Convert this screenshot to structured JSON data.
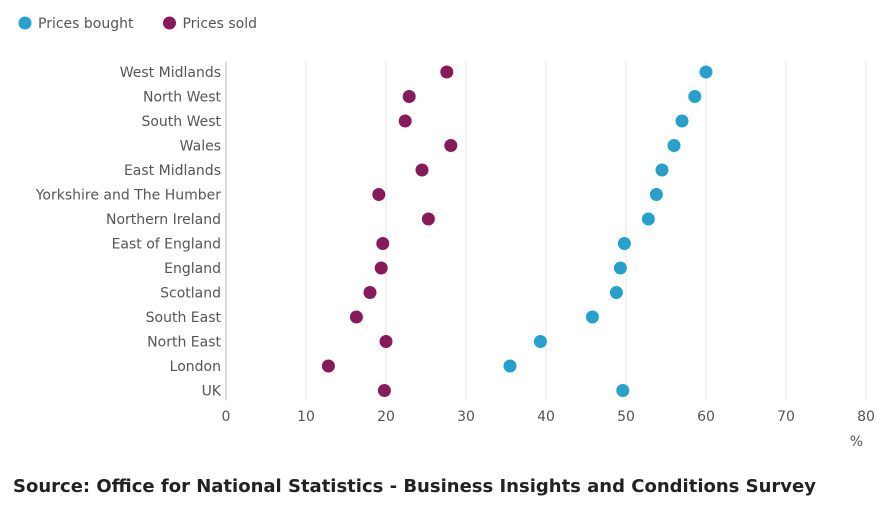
{
  "chart_data": {
    "type": "scatter",
    "subtype": "dot-plot",
    "categories": [
      "West Midlands",
      "North West",
      "South West",
      "Wales",
      "East Midlands",
      "Yorkshire and The Humber",
      "Northern Ireland",
      "East of England",
      "England",
      "Scotland",
      "South East",
      "North East",
      "London",
      "UK"
    ],
    "series": [
      {
        "name": "Prices bought",
        "color": "#27a0cc",
        "values": [
          60.0,
          58.6,
          57.0,
          56.0,
          54.5,
          53.8,
          52.8,
          49.8,
          49.3,
          48.8,
          45.8,
          39.3,
          35.5,
          49.6
        ]
      },
      {
        "name": "Prices sold",
        "color": "#871a5b",
        "values": [
          27.6,
          22.9,
          22.4,
          28.1,
          24.5,
          19.1,
          25.3,
          19.6,
          19.4,
          18.0,
          16.3,
          20.0,
          12.8,
          19.8
        ]
      }
    ],
    "xlim": [
      0,
      80
    ],
    "xticks": [
      "0",
      "10",
      "20",
      "30",
      "40",
      "50",
      "60",
      "70",
      "80"
    ],
    "xlabel": "%",
    "grid": "vertical",
    "legend": "top-left"
  },
  "source": "Source: Office for National Statistics - Business Insights and Conditions Survey"
}
